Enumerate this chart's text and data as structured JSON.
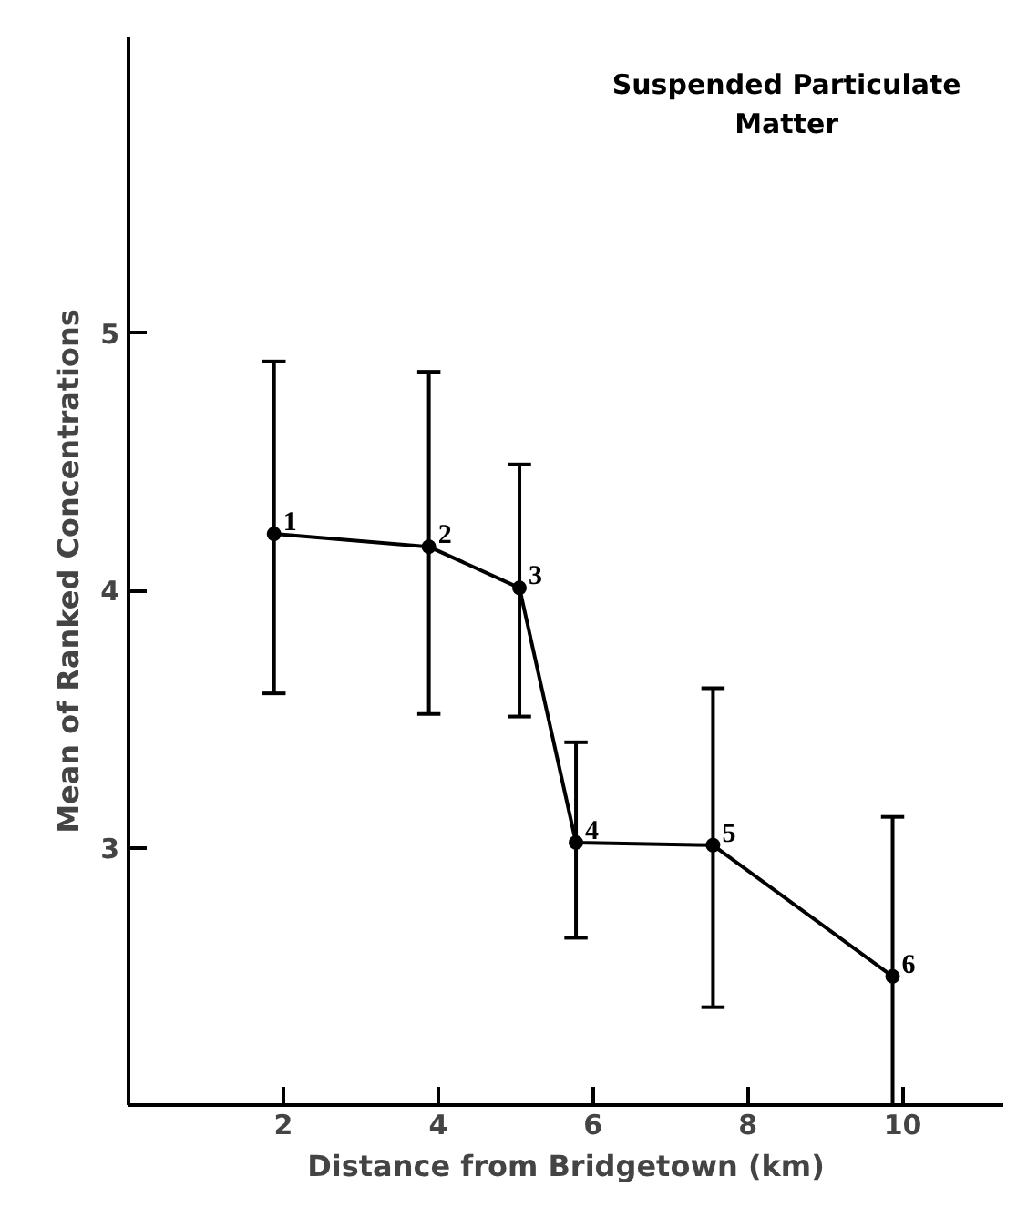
{
  "chart_data": {
    "type": "line",
    "xlabel": "Distance from Bridgetown (km)",
    "ylabel": "Mean of Ranked Concentrations",
    "x": [
      1.88,
      3.88,
      5.05,
      5.78,
      7.55,
      9.87
    ],
    "values": [
      4.22,
      4.17,
      4.01,
      3.02,
      3.01,
      2.5
    ],
    "errors": [
      [
        3.6,
        4.89
      ],
      [
        3.52,
        4.85
      ],
      [
        3.51,
        4.49
      ],
      [
        2.65,
        3.41
      ],
      [
        2.38,
        3.62
      ],
      [
        2.0,
        3.12
      ]
    ],
    "color": "#000000",
    "marker": "circle",
    "line_style": "solid",
    "grid": false,
    "xlim": [
      0,
      11.3
    ],
    "ylim": [
      2,
      6.15
    ],
    "xticks": [
      2,
      4,
      6,
      8,
      10
    ],
    "yticks": [
      3,
      4,
      5
    ],
    "annotations": [
      "Suspended Particulate Matter",
      {
        "text": "1",
        "x": 1.88,
        "y": 4.22
      },
      {
        "text": "2",
        "x": 3.88,
        "y": 4.17
      },
      {
        "text": "3",
        "x": 5.05,
        "y": 4.01
      },
      {
        "text": "4",
        "x": 5.78,
        "y": 3.02
      },
      {
        "text": "5",
        "x": 7.55,
        "y": 3.01
      },
      {
        "text": "6",
        "x": 9.87,
        "y": 2.5
      }
    ]
  }
}
